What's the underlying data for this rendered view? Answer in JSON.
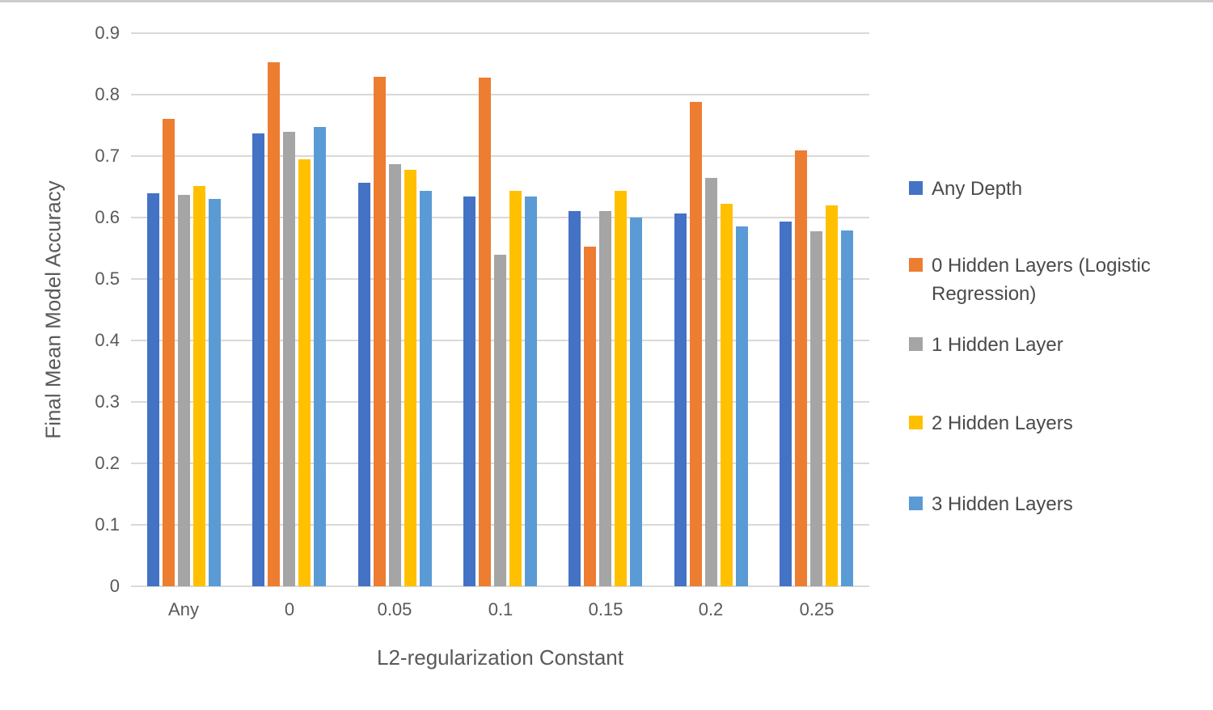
{
  "chart_data": {
    "type": "bar",
    "title": "",
    "xlabel": "L2-regularization Constant",
    "ylabel": "Final Mean Model Accuracy",
    "categories": [
      "Any",
      "0",
      "0.05",
      "0.1",
      "0.15",
      "0.2",
      "0.25"
    ],
    "series": [
      {
        "name": "Any Depth",
        "color": "#4472C4",
        "values": [
          0.64,
          0.737,
          0.657,
          0.634,
          0.611,
          0.607,
          0.593
        ]
      },
      {
        "name": "0 Hidden Layers (Logistic Regression)",
        "color": "#ED7D31",
        "values": [
          0.76,
          0.853,
          0.829,
          0.828,
          0.553,
          0.788,
          0.709
        ]
      },
      {
        "name": "1 Hidden Layer",
        "color": "#A5A5A5",
        "values": [
          0.637,
          0.74,
          0.687,
          0.539,
          0.611,
          0.664,
          0.578
        ]
      },
      {
        "name": "2 Hidden Layers",
        "color": "#FFC000",
        "values": [
          0.651,
          0.695,
          0.677,
          0.644,
          0.644,
          0.623,
          0.62
        ]
      },
      {
        "name": "3 Hidden Layers",
        "color": "#5B9BD5",
        "values": [
          0.63,
          0.747,
          0.644,
          0.634,
          0.6,
          0.586,
          0.579
        ]
      }
    ],
    "ylim": [
      0,
      0.9
    ],
    "ytick_step": 0.1,
    "ytick_labels": [
      "0",
      "0.1",
      "0.2",
      "0.3",
      "0.4",
      "0.5",
      "0.6",
      "0.7",
      "0.8",
      "0.9"
    ],
    "grid": true,
    "legend_position": "right",
    "gridline_color": "#D9D9D9",
    "axis_text_color": "#595959"
  }
}
